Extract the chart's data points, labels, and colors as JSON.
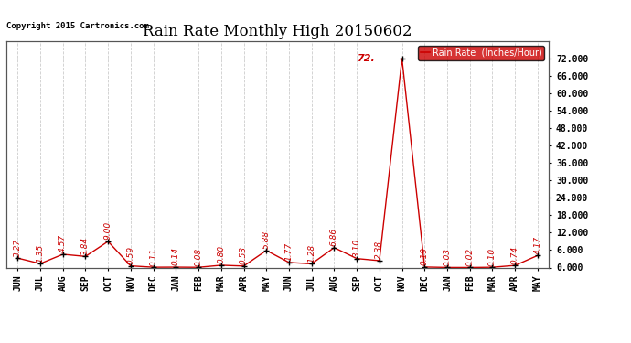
{
  "title": "Rain Rate Monthly High 20150602",
  "copyright": "Copyright 2015 Cartronics.com",
  "legend_label": "Rain Rate  (Inches/Hour)",
  "categories": [
    "JUN",
    "JUL",
    "AUG",
    "SEP",
    "OCT",
    "NOV",
    "DEC",
    "JAN",
    "FEB",
    "MAR",
    "APR",
    "MAY",
    "JUN",
    "JUL",
    "AUG",
    "SEP",
    "OCT",
    "NOV",
    "DEC",
    "JAN",
    "FEB",
    "MAR",
    "APR",
    "MAY"
  ],
  "values": [
    3.27,
    1.35,
    4.57,
    3.84,
    9.0,
    0.59,
    0.11,
    0.14,
    0.08,
    0.8,
    0.53,
    5.88,
    1.77,
    1.28,
    6.86,
    3.1,
    2.38,
    72.0,
    0.19,
    0.03,
    0.02,
    0.1,
    0.74,
    4.17
  ],
  "annotations": [
    "3.27",
    "1.35",
    "4.57",
    "3.84",
    "9.00",
    "0.59",
    "0.11",
    "0.14",
    "0.08",
    "0.80",
    "0.53",
    "5.88",
    "1.77",
    "1.28",
    "6.86",
    "3.10",
    "2.38",
    "72.",
    "0.19",
    "0.03",
    "0.02",
    "0.10",
    "0.74",
    "4.17"
  ],
  "line_color": "#cc0000",
  "marker_color": "#000000",
  "background_color": "#ffffff",
  "grid_color": "#cccccc",
  "ylim": [
    0,
    78
  ],
  "yticks": [
    0.0,
    6.0,
    12.0,
    18.0,
    24.0,
    30.0,
    36.0,
    42.0,
    48.0,
    54.0,
    60.0,
    66.0,
    72.0
  ],
  "title_fontsize": 12,
  "annotation_fontsize": 6.5,
  "peak_index": 17,
  "legend_bg": "#cc0000",
  "legend_fg": "#ffffff"
}
